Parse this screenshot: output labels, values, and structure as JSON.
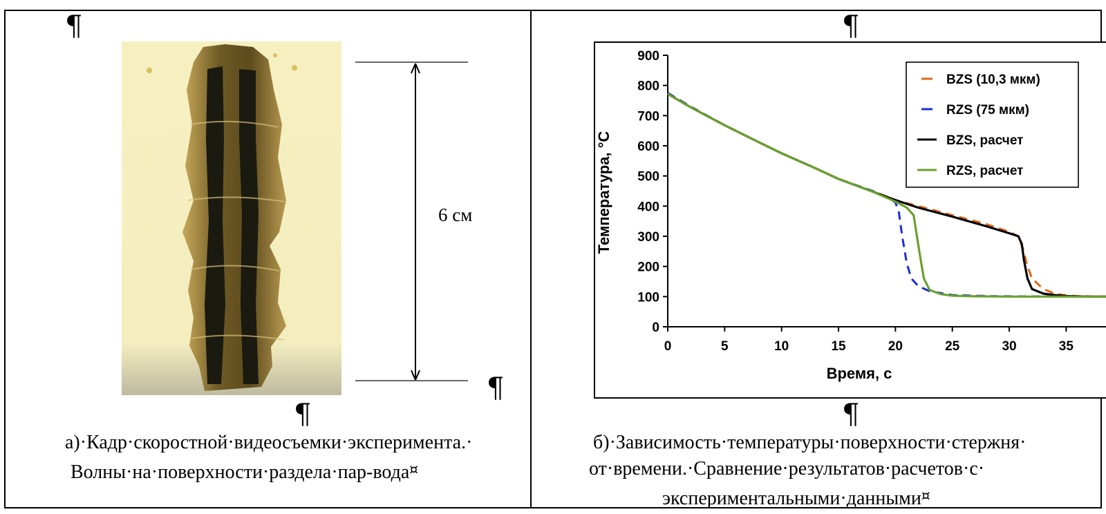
{
  "left_cell": {
    "scale_label": "6 см",
    "caption_line1": "а)·Кадр·скоростной·видеосъемки·эксперимента.·",
    "caption_line2": "Волны·на·поверхности·раздела·пар-вода",
    "pilcrow": "¶",
    "cell_mark": "¤"
  },
  "right_cell": {
    "caption_line1": "б)·Зависимость·температуры·поверхности·стержня·",
    "caption_line2": "от·времени.·Сравнение·результатов·расчетов·с·",
    "caption_line3": "экспериментальными·данными",
    "pilcrow": "¶",
    "cell_mark": "¤"
  },
  "colors": {
    "bzs_exp": "#e0661a",
    "rzs_exp": "#1a2fd6",
    "bzs_calc": "#000000",
    "rzs_calc": "#6aa02c"
  },
  "chart_data": {
    "type": "line",
    "xlabel": "Время, с",
    "ylabel": "Температура, °С",
    "xlim": [
      0,
      38.5
    ],
    "ylim": [
      0,
      900
    ],
    "xticks": [
      0,
      5,
      10,
      15,
      20,
      25,
      30,
      35
    ],
    "yticks": [
      0,
      100,
      200,
      300,
      400,
      500,
      600,
      700,
      800,
      900
    ],
    "legend_position": "top-right",
    "series": [
      {
        "name": "BZS (10,3 мкм)",
        "style": "dashed",
        "color": "#e0661a",
        "x": [
          0,
          2,
          5,
          8,
          10,
          13,
          15,
          18,
          20,
          22,
          25,
          28,
          30,
          30.8,
          31.2,
          31.6,
          32,
          33,
          34,
          35,
          36,
          37,
          38.5
        ],
        "y": [
          775,
          730,
          668,
          612,
          575,
          525,
          490,
          450,
          420,
          400,
          370,
          340,
          315,
          300,
          260,
          200,
          160,
          125,
          110,
          104,
          102,
          101,
          100
        ]
      },
      {
        "name": "RZS (75 мкм)",
        "style": "dashed",
        "color": "#1a2fd6",
        "x": [
          0,
          2,
          5,
          8,
          10,
          13,
          15,
          18,
          19.5,
          20,
          20.3,
          20.6,
          21,
          21.4,
          22,
          23,
          25,
          28,
          30,
          35,
          38.5
        ],
        "y": [
          775,
          730,
          668,
          612,
          575,
          525,
          490,
          450,
          425,
          412,
          380,
          300,
          210,
          160,
          135,
          118,
          105,
          102,
          101,
          100,
          100
        ]
      },
      {
        "name": "BZS, расчет",
        "style": "solid",
        "color": "#000000",
        "x": [
          0,
          2,
          5,
          8,
          10,
          13,
          15,
          18,
          20,
          22,
          25,
          28,
          30,
          30.8,
          31.1,
          31.3,
          31.6,
          32,
          33,
          34,
          35,
          37,
          38.5
        ],
        "y": [
          772,
          728,
          668,
          612,
          575,
          525,
          490,
          448,
          420,
          395,
          365,
          333,
          310,
          300,
          275,
          220,
          160,
          125,
          110,
          105,
          102,
          100,
          100
        ]
      },
      {
        "name": "RZS, расчет",
        "style": "solid",
        "color": "#6aa02c",
        "x": [
          0,
          2,
          5,
          8,
          10,
          13,
          15,
          18,
          20,
          21,
          21.6,
          22.1,
          22.5,
          23,
          24,
          25,
          27,
          30,
          35,
          38.5
        ],
        "y": [
          772,
          728,
          668,
          612,
          575,
          525,
          490,
          448,
          415,
          395,
          370,
          250,
          160,
          122,
          108,
          103,
          101,
          100,
          100,
          100
        ]
      }
    ]
  }
}
